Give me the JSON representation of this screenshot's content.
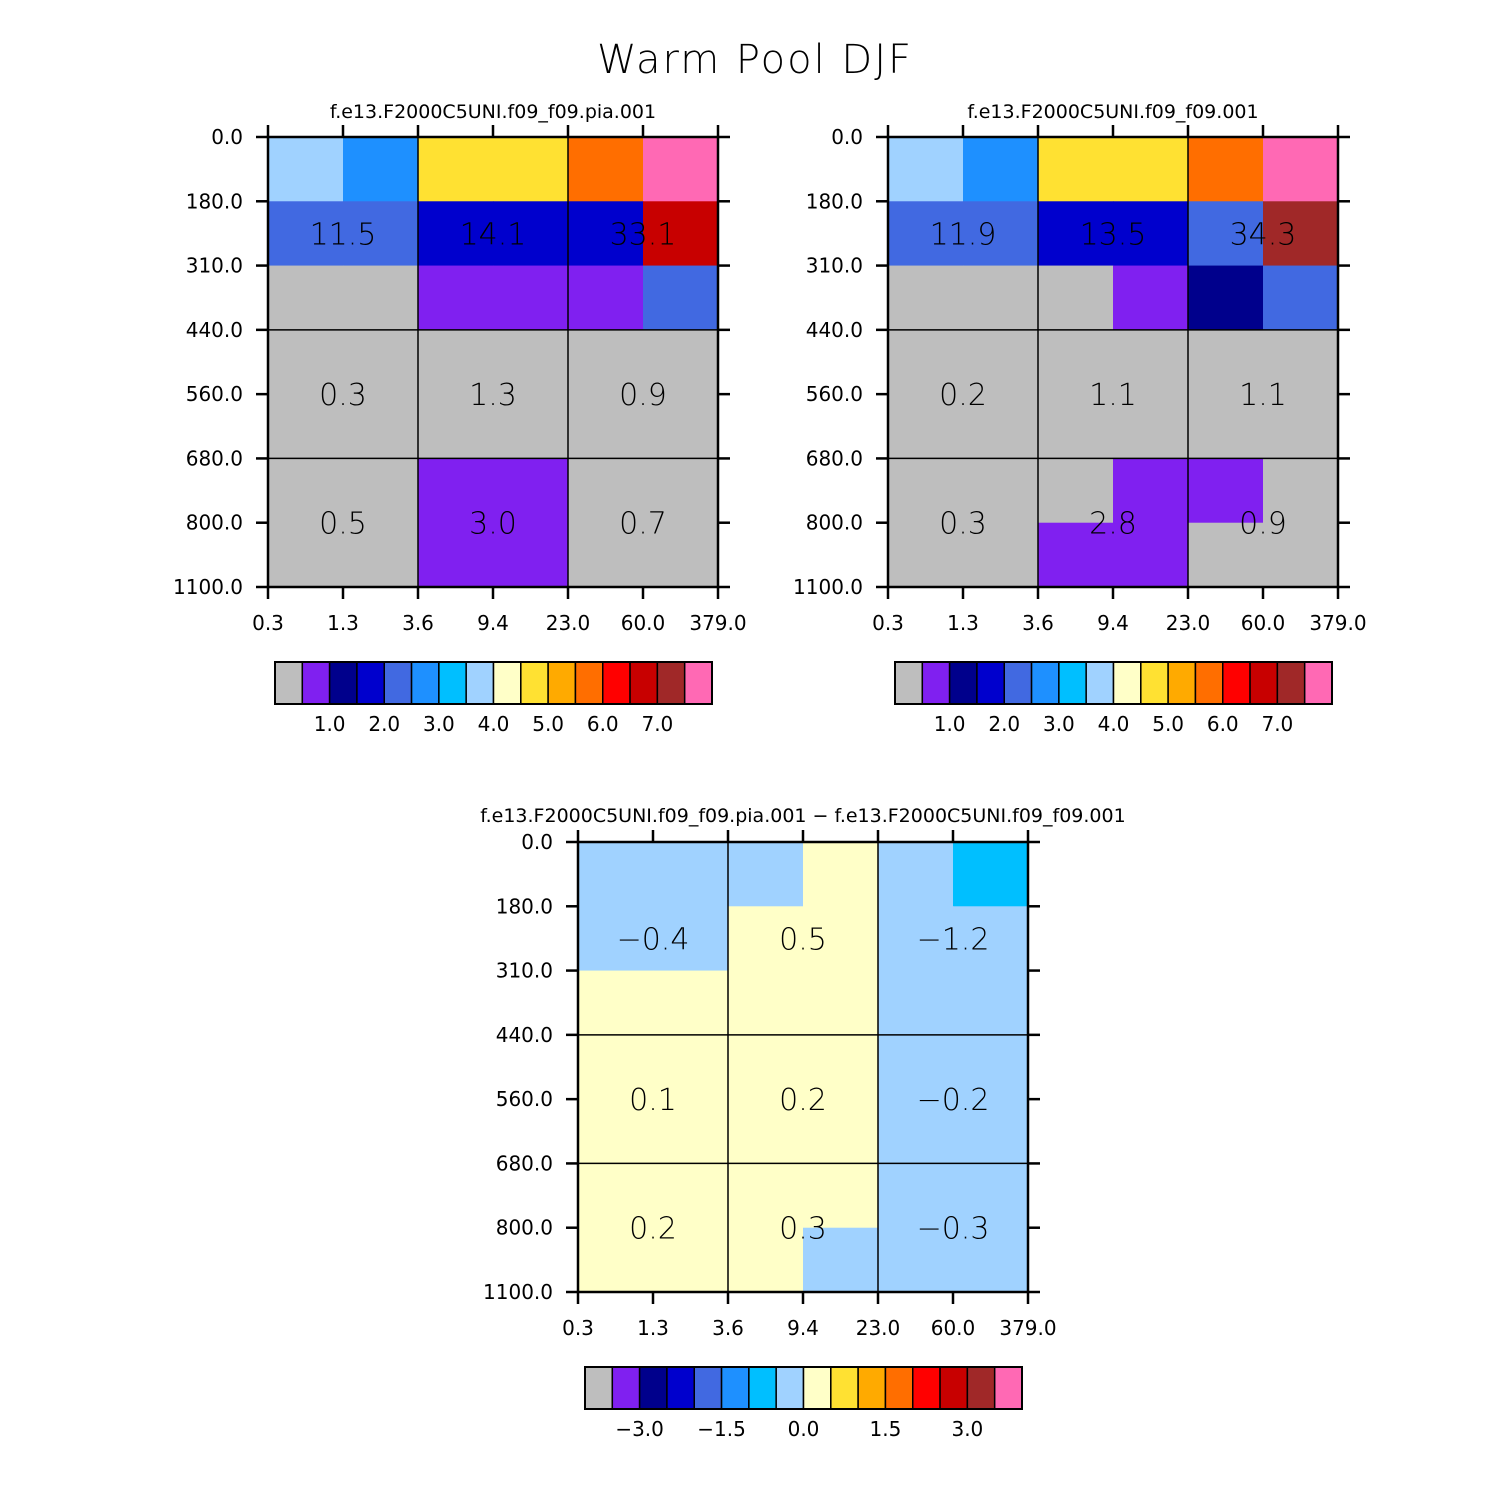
{
  "title": "Warm Pool DJF",
  "palette": [
    "#bebebe",
    "#8020f0",
    "#00008c",
    "#0000cd",
    "#4169e1",
    "#1e90ff",
    "#00bfff",
    "#a0d2ff",
    "#ffffc8",
    "#ffe132",
    "#ffaa00",
    "#ff6e00",
    "#ff0000",
    "#c80000",
    "#a02828",
    "#ff69b4"
  ],
  "chart_data": [
    {
      "type": "heatmap",
      "title": "f.e13.F2000C5UNI.f09_f09.pia.001",
      "x_ticks": [
        "0.3",
        "1.3",
        "3.6",
        "9.4",
        "23.0",
        "60.0",
        "379.0"
      ],
      "y_ticks": [
        "0.0",
        "180.0",
        "310.0",
        "440.0",
        "560.0",
        "680.0",
        "800.0",
        "1100.0"
      ],
      "ylim": [
        0,
        1100
      ],
      "cell_color_index": [
        [
          7,
          5,
          9,
          9,
          11,
          15
        ],
        [
          4,
          4,
          3,
          3,
          3,
          13
        ],
        [
          0,
          0,
          1,
          1,
          1,
          4
        ],
        [
          0,
          0,
          0,
          0,
          0,
          0
        ],
        [
          0,
          0,
          0,
          0,
          0,
          0
        ],
        [
          0,
          0,
          1,
          1,
          0,
          0
        ],
        [
          0,
          0,
          1,
          1,
          0,
          0
        ]
      ],
      "box_labels": [
        [
          "11.5",
          "14.1",
          "33.1"
        ],
        [
          "0.3",
          "1.3",
          "0.9"
        ],
        [
          "0.5",
          "3.0",
          "0.7"
        ]
      ],
      "colorbar": {
        "start_index": 0,
        "count": 16,
        "tick_labels": [
          "1.0",
          "2.0",
          "3.0",
          "4.0",
          "5.0",
          "6.0",
          "7.0"
        ],
        "tick_positions": [
          2,
          4,
          6,
          8,
          10,
          12,
          14
        ]
      }
    },
    {
      "type": "heatmap",
      "title": "f.e13.F2000C5UNI.f09_f09.001",
      "x_ticks": [
        "0.3",
        "1.3",
        "3.6",
        "9.4",
        "23.0",
        "60.0",
        "379.0"
      ],
      "y_ticks": [
        "0.0",
        "180.0",
        "310.0",
        "440.0",
        "560.0",
        "680.0",
        "800.0",
        "1100.0"
      ],
      "ylim": [
        0,
        1100
      ],
      "cell_color_index": [
        [
          7,
          5,
          9,
          9,
          11,
          15
        ],
        [
          4,
          4,
          3,
          3,
          4,
          14
        ],
        [
          0,
          0,
          0,
          1,
          2,
          4
        ],
        [
          0,
          0,
          0,
          0,
          0,
          0
        ],
        [
          0,
          0,
          0,
          0,
          0,
          0
        ],
        [
          0,
          0,
          0,
          1,
          1,
          0
        ],
        [
          0,
          0,
          1,
          1,
          0,
          0
        ]
      ],
      "box_labels": [
        [
          "11.9",
          "13.5",
          "34.3"
        ],
        [
          "0.2",
          "1.1",
          "1.1"
        ],
        [
          "0.3",
          "2.8",
          "0.9"
        ]
      ],
      "colorbar": {
        "start_index": 0,
        "count": 16,
        "tick_labels": [
          "1.0",
          "2.0",
          "3.0",
          "4.0",
          "5.0",
          "6.0",
          "7.0"
        ],
        "tick_positions": [
          2,
          4,
          6,
          8,
          10,
          12,
          14
        ]
      }
    },
    {
      "type": "heatmap",
      "title": "f.e13.F2000C5UNI.f09_f09.pia.001 − f.e13.F2000C5UNI.f09_f09.001",
      "x_ticks": [
        "0.3",
        "1.3",
        "3.6",
        "9.4",
        "23.0",
        "60.0",
        "379.0"
      ],
      "y_ticks": [
        "0.0",
        "180.0",
        "310.0",
        "440.0",
        "560.0",
        "680.0",
        "800.0",
        "1100.0"
      ],
      "ylim": [
        0,
        1100
      ],
      "cell_color_index": [
        [
          7,
          7,
          7,
          8,
          7,
          6
        ],
        [
          7,
          7,
          8,
          8,
          7,
          7
        ],
        [
          8,
          8,
          8,
          8,
          7,
          7
        ],
        [
          8,
          8,
          8,
          8,
          7,
          7
        ],
        [
          8,
          8,
          8,
          8,
          7,
          7
        ],
        [
          8,
          8,
          8,
          8,
          7,
          7
        ],
        [
          8,
          8,
          8,
          7,
          7,
          7
        ]
      ],
      "box_labels": [
        [
          "−0.4",
          "0.5",
          "−1.2"
        ],
        [
          "0.1",
          "0.2",
          "−0.2"
        ],
        [
          "0.2",
          "0.3",
          "−0.3"
        ]
      ],
      "colorbar": {
        "start_index": 0,
        "count": 16,
        "tick_labels": [
          "−3.0",
          "−1.5",
          "0.0",
          "1.5",
          "3.0"
        ],
        "tick_positions": [
          2,
          5,
          8,
          11,
          14
        ]
      }
    }
  ]
}
